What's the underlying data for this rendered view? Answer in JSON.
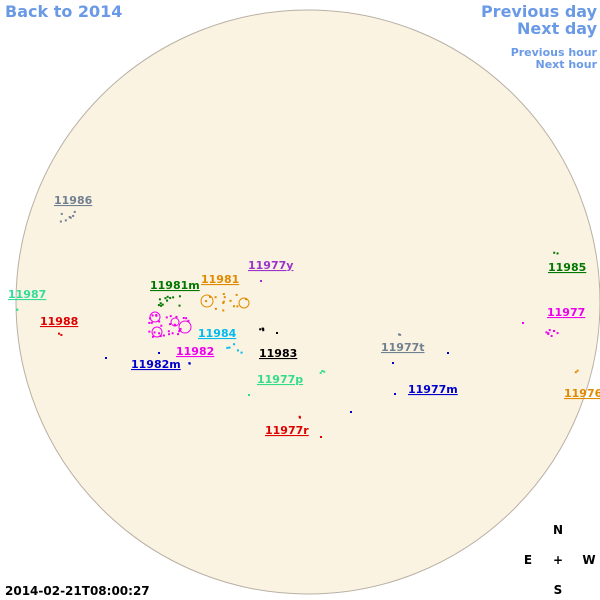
{
  "nav": {
    "back": "Back to 2014",
    "previous_day": "Previous day",
    "next_day": "Next day",
    "previous_hour": "Previous hour",
    "next_hour": "Next hour"
  },
  "regions": [
    {
      "label": "11986",
      "color": "#708090"
    },
    {
      "label": "11987",
      "color": "#33dd99"
    },
    {
      "label": "11988",
      "color": "#dd0000"
    },
    {
      "label": "11981m",
      "color": "#007700"
    },
    {
      "label": "11981",
      "color": "#e08a00"
    },
    {
      "label": "11977y",
      "color": "#9933cc"
    },
    {
      "label": "11984",
      "color": "#00bbee"
    },
    {
      "label": "11982",
      "color": "#ee00ee"
    },
    {
      "label": "11982m",
      "color": "#0000cc"
    },
    {
      "label": "11983",
      "color": "#000000"
    },
    {
      "label": "11977p",
      "color": "#33dd88"
    },
    {
      "label": "11977t",
      "color": "#708090"
    },
    {
      "label": "11977m",
      "color": "#0000cc"
    },
    {
      "label": "11977r",
      "color": "#dd0000"
    },
    {
      "label": "11985",
      "color": "#007700"
    },
    {
      "label": "11977",
      "color": "#ee00ee"
    },
    {
      "label": "11976",
      "color": "#e08a00"
    }
  ],
  "compass": {
    "north": "N",
    "east": "E",
    "center": "+",
    "west": "W",
    "south": "S"
  },
  "timestamp": "2014-02-21T08:00:27"
}
